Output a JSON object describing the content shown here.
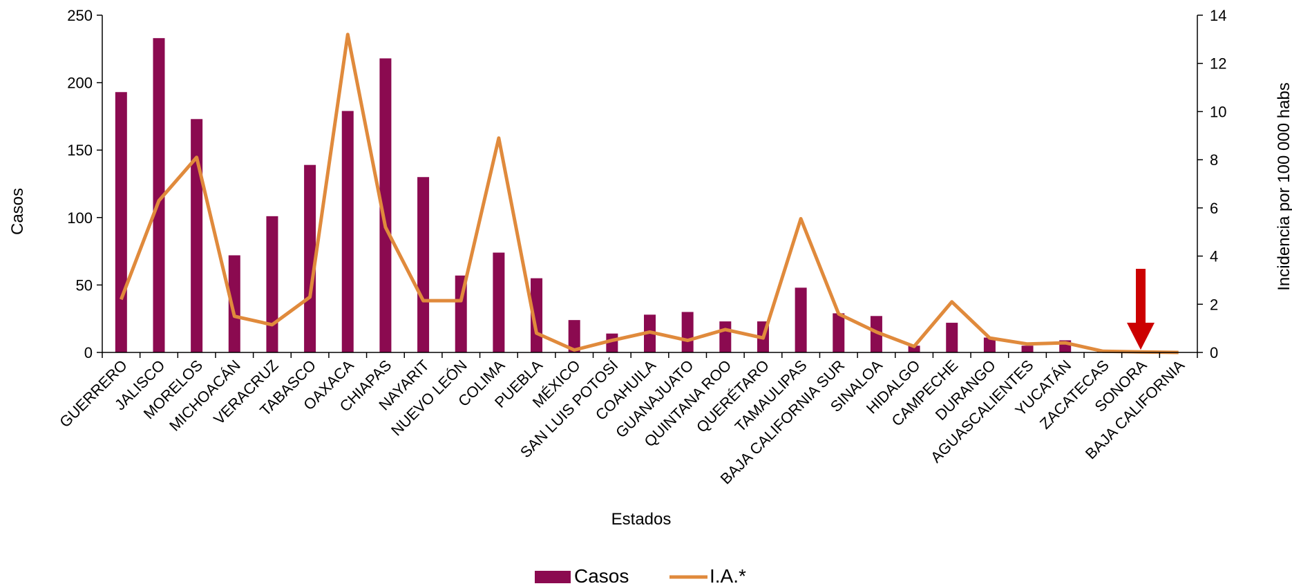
{
  "chart_data": {
    "type": "bar",
    "title": "",
    "xlabel": "Estados",
    "ylabel": "Casos",
    "y2label": "Incidencia por 100 000 habs",
    "ylim": [
      0,
      250
    ],
    "y2lim": [
      0,
      14
    ],
    "yticks": [
      "0",
      "50",
      "100",
      "150",
      "200",
      "250"
    ],
    "y2ticks": [
      "0",
      "2",
      "4",
      "6",
      "8",
      "10",
      "12",
      "14"
    ],
    "grid": false,
    "legend_position": "bottom",
    "categories": [
      "GUERRERO",
      "JALISCO",
      "MORELOS",
      "MICHOACÁN",
      "VERACRUZ",
      "TABASCO",
      "OAXACA",
      "CHIAPAS",
      "NAYARIT",
      "NUEVO LEÓN",
      "COLIMA",
      "PUEBLA",
      "MÉXICO",
      "SAN LUIS POTOSÍ",
      "COAHUILA",
      "GUANAJUATO",
      "QUINTANA ROO",
      "QUERÉTARO",
      "TAMAULIPAS",
      "BAJA CALIFORNIA SUR",
      "SINALOA",
      "HIDALGO",
      "CAMPECHE",
      "DURANGO",
      "AGUASCALIENTES",
      "YUCATÁN",
      "ZACATECAS",
      "SONORA",
      "BAJA CALIFORNIA"
    ],
    "series": [
      {
        "name": "Casos",
        "kind": "bar",
        "axis": "left",
        "color": "#8B0A50",
        "values": [
          193,
          233,
          173,
          72,
          101,
          139,
          179,
          218,
          130,
          57,
          74,
          55,
          24,
          14,
          28,
          30,
          23,
          23,
          48,
          29,
          27,
          5,
          22,
          11,
          5,
          9,
          1,
          1,
          0
        ]
      },
      {
        "name": "I.A.*",
        "kind": "line",
        "axis": "right",
        "color": "#E08A3C",
        "values": [
          2.2,
          6.3,
          8.1,
          1.5,
          1.15,
          2.3,
          13.2,
          5.2,
          2.15,
          2.15,
          8.9,
          0.8,
          0.1,
          0.5,
          0.85,
          0.5,
          0.95,
          0.6,
          5.55,
          1.6,
          0.85,
          0.25,
          2.1,
          0.6,
          0.35,
          0.4,
          0.05,
          0.02,
          0.0
        ]
      }
    ],
    "annotation": {
      "type": "arrow",
      "category": "SONORA",
      "color": "#CC0000",
      "direction": "down"
    }
  }
}
